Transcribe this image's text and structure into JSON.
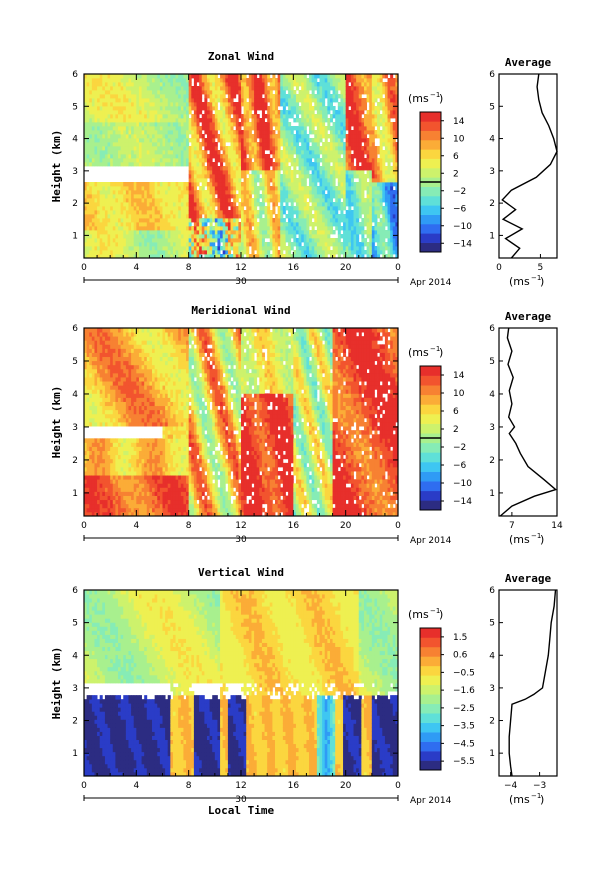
{
  "chart_data": [
    {
      "type": "heatmap",
      "title": "Zonal Wind",
      "ylabel": "Height (km)",
      "xlabel": "",
      "ylim": [
        0.3,
        6
      ],
      "yticks": [
        "1",
        "2",
        "3",
        "4",
        "5",
        "6"
      ],
      "xticks": [
        "0",
        "4",
        "8",
        "12",
        "16",
        "20",
        "0"
      ],
      "date_day": "30",
      "date_month": "Apr 2014",
      "colorbar_unit": "(ms",
      "colorbar_unit_exp": "−1",
      "colorbar_ticks": [
        "14",
        "10",
        "6",
        "2",
        "−2",
        "−6",
        "−10",
        "−14"
      ],
      "colorbar_range": [
        -16,
        16
      ],
      "colormap": [
        "#2c2c82",
        "#2a3cc7",
        "#2f6df0",
        "#2f9bf5",
        "#3ec6f2",
        "#5fe0d8",
        "#86ecb6",
        "#a8f08e",
        "#cdf26c",
        "#eef051",
        "#fbd63f",
        "#fbac37",
        "#f78132",
        "#f2542e",
        "#e72f2b"
      ],
      "profile": {
        "title": "Average",
        "xlabel": "(ms",
        "xlabel_exp": "−1",
        "xticks": [
          "0",
          "5"
        ],
        "xlim": [
          0,
          7
        ],
        "heights": [
          0.3,
          0.6,
          0.9,
          1.2,
          1.5,
          1.8,
          2.1,
          2.4,
          2.8,
          3.2,
          3.6,
          4.0,
          4.4,
          4.8,
          5.2,
          5.6,
          6.0
        ],
        "values": [
          1.5,
          2.5,
          0.8,
          2.8,
          0.5,
          2.0,
          0.4,
          1.5,
          4.5,
          6.2,
          7.0,
          6.6,
          6.0,
          5.2,
          4.8,
          4.6,
          4.8
        ]
      }
    },
    {
      "type": "heatmap",
      "title": "Meridional Wind",
      "ylabel": "Height (km)",
      "xlabel": "",
      "ylim": [
        0.3,
        6
      ],
      "yticks": [
        "1",
        "2",
        "3",
        "4",
        "5",
        "6"
      ],
      "xticks": [
        "0",
        "4",
        "8",
        "12",
        "16",
        "20",
        "0"
      ],
      "date_day": "30",
      "date_month": "Apr 2014",
      "colorbar_unit": "(ms",
      "colorbar_unit_exp": "−1",
      "colorbar_ticks": [
        "14",
        "10",
        "6",
        "2",
        "−2",
        "−6",
        "−10",
        "−14"
      ],
      "colorbar_range": [
        -16,
        16
      ],
      "profile": {
        "title": "Average",
        "xlabel": "(ms",
        "xlabel_exp": "−1",
        "xticks": [
          "7",
          "14"
        ],
        "xlim": [
          5,
          14
        ],
        "heights": [
          0.3,
          0.6,
          0.9,
          1.1,
          1.4,
          1.8,
          2.2,
          2.5,
          2.8,
          3.0,
          3.3,
          3.7,
          4.1,
          4.5,
          4.9,
          5.3,
          5.7,
          6.0
        ],
        "values": [
          5.2,
          7.0,
          10.5,
          13.8,
          12.0,
          9.5,
          8.3,
          7.6,
          6.6,
          7.4,
          6.5,
          7.0,
          6.6,
          7.2,
          6.4,
          7.0,
          6.3,
          6.5
        ]
      }
    },
    {
      "type": "heatmap",
      "title": "Vertical Wind",
      "ylabel": "Height (km)",
      "xlabel": "Local Time",
      "ylim": [
        0.3,
        6
      ],
      "yticks": [
        "1",
        "2",
        "3",
        "4",
        "5",
        "6"
      ],
      "xticks": [
        "0",
        "4",
        "8",
        "12",
        "16",
        "20",
        "0"
      ],
      "date_day": "30",
      "date_month": "Apr 2014",
      "colorbar_unit": "(ms",
      "colorbar_unit_exp": "−1",
      "colorbar_ticks": [
        "1.5",
        "0.6",
        "−0.5",
        "−1.6",
        "−2.5",
        "−3.5",
        "−4.5",
        "−5.5"
      ],
      "colorbar_range": [
        -6,
        2
      ],
      "profile": {
        "title": "Average",
        "xlabel": "(ms",
        "xlabel_exp": "−1",
        "xticks": [
          "−4",
          "−3"
        ],
        "xlim": [
          -4.4,
          -2.4
        ],
        "heights": [
          0.3,
          0.6,
          1.0,
          1.5,
          2.0,
          2.5,
          2.65,
          2.8,
          3.0,
          3.5,
          4.0,
          4.5,
          5.0,
          5.5,
          6.0
        ],
        "values": [
          -3.95,
          -4.0,
          -4.05,
          -4.05,
          -4.0,
          -3.95,
          -3.5,
          -3.2,
          -2.9,
          -2.8,
          -2.7,
          -2.65,
          -2.6,
          -2.5,
          -2.45
        ]
      }
    }
  ]
}
